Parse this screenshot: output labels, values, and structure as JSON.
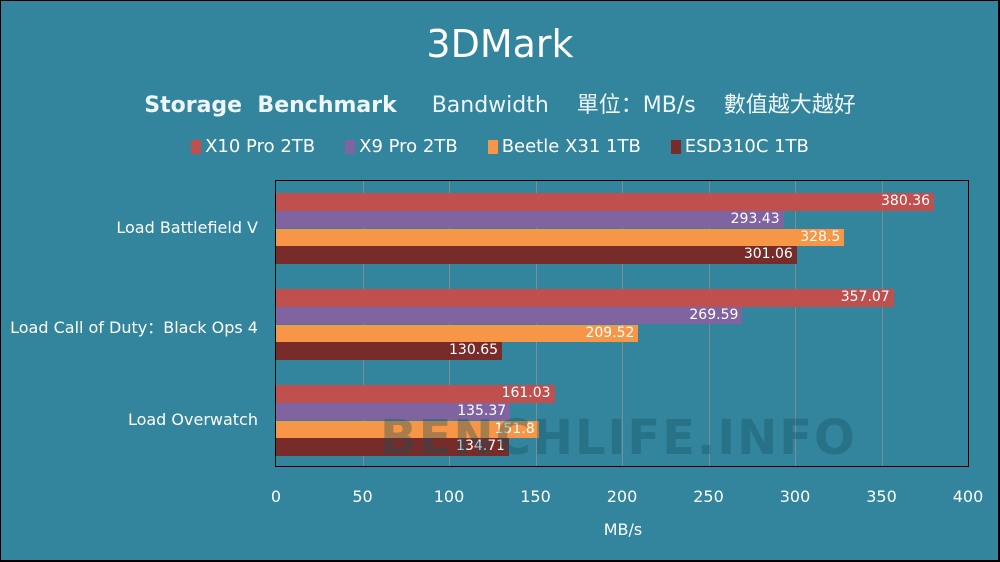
{
  "header": {
    "title": "3DMark",
    "subtitle_bold": "Storage  Benchmark",
    "subtitle_rest": "     Bandwidth    單位：MB/s    數值越大越好"
  },
  "legend": [
    {
      "label": "X10 Pro 2TB",
      "color": "#c0504d"
    },
    {
      "label": "X9 Pro 2TB",
      "color": "#8064a2"
    },
    {
      "label": "Beetle X31 1TB",
      "color": "#f79646"
    },
    {
      "label": "ESD310C 1TB",
      "color": "#772c2a"
    }
  ],
  "watermark": "BENCHLIFE.INFO",
  "chart_data": {
    "type": "bar",
    "orientation": "horizontal",
    "title": "3DMark",
    "subtitle": "Storage Benchmark  Bandwidth  單位：MB/s  數值越大越好",
    "categories": [
      "Load Battlefield V",
      "Load Call of Duty：Black Ops 4",
      "Load Overwatch"
    ],
    "series": [
      {
        "name": "X10 Pro 2TB",
        "color": "#c0504d",
        "values": [
          380.36,
          357.07,
          161.03
        ]
      },
      {
        "name": "X9 Pro 2TB",
        "color": "#8064a2",
        "values": [
          293.43,
          269.59,
          135.37
        ]
      },
      {
        "name": "Beetle X31 1TB",
        "color": "#f79646",
        "values": [
          328.5,
          209.52,
          151.8
        ]
      },
      {
        "name": "ESD310C 1TB",
        "color": "#772c2a",
        "values": [
          301.06,
          130.65,
          134.71
        ]
      }
    ],
    "xlabel": "MB/s",
    "ylabel": "",
    "xlim": [
      0,
      400
    ],
    "xticks": [
      "0",
      "50",
      "100",
      "150",
      "200",
      "250",
      "300",
      "350",
      "400"
    ],
    "grid": true,
    "legend_position": "top"
  }
}
